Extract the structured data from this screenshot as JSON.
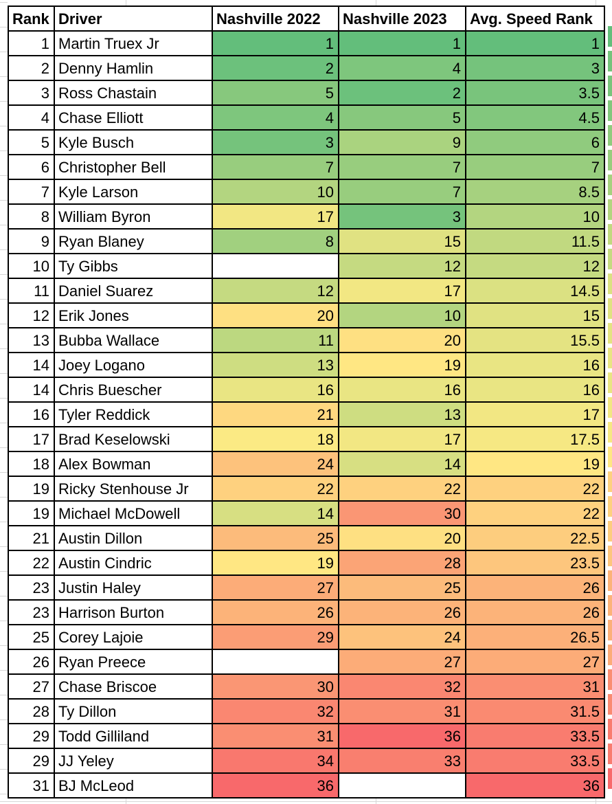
{
  "table": {
    "columns": [
      {
        "key": "rank",
        "label": "Rank"
      },
      {
        "key": "driver",
        "label": "Driver"
      },
      {
        "key": "n2022",
        "label": "Nashville 2022"
      },
      {
        "key": "n2023",
        "label": "Nashville 2023"
      },
      {
        "key": "avg",
        "label": "Avg. Speed Rank"
      }
    ],
    "rows": [
      {
        "rank": "1",
        "driver": "Martin Truex Jr",
        "n2022": "1",
        "n2023": "1",
        "avg": "1"
      },
      {
        "rank": "2",
        "driver": "Denny Hamlin",
        "n2022": "2",
        "n2023": "4",
        "avg": "3"
      },
      {
        "rank": "3",
        "driver": "Ross Chastain",
        "n2022": "5",
        "n2023": "2",
        "avg": "3.5"
      },
      {
        "rank": "4",
        "driver": "Chase Elliott",
        "n2022": "4",
        "n2023": "5",
        "avg": "4.5"
      },
      {
        "rank": "5",
        "driver": "Kyle Busch",
        "n2022": "3",
        "n2023": "9",
        "avg": "6"
      },
      {
        "rank": "6",
        "driver": "Christopher Bell",
        "n2022": "7",
        "n2023": "7",
        "avg": "7"
      },
      {
        "rank": "7",
        "driver": "Kyle Larson",
        "n2022": "10",
        "n2023": "7",
        "avg": "8.5"
      },
      {
        "rank": "8",
        "driver": "William Byron",
        "n2022": "17",
        "n2023": "3",
        "avg": "10"
      },
      {
        "rank": "9",
        "driver": "Ryan Blaney",
        "n2022": "8",
        "n2023": "15",
        "avg": "11.5"
      },
      {
        "rank": "10",
        "driver": "Ty Gibbs",
        "n2022": null,
        "n2023": "12",
        "avg": "12"
      },
      {
        "rank": "11",
        "driver": "Daniel Suarez",
        "n2022": "12",
        "n2023": "17",
        "avg": "14.5"
      },
      {
        "rank": "12",
        "driver": "Erik Jones",
        "n2022": "20",
        "n2023": "10",
        "avg": "15"
      },
      {
        "rank": "13",
        "driver": "Bubba Wallace",
        "n2022": "11",
        "n2023": "20",
        "avg": "15.5"
      },
      {
        "rank": "14",
        "driver": "Joey Logano",
        "n2022": "13",
        "n2023": "19",
        "avg": "16"
      },
      {
        "rank": "14",
        "driver": "Chris Buescher",
        "n2022": "16",
        "n2023": "16",
        "avg": "16"
      },
      {
        "rank": "16",
        "driver": "Tyler Reddick",
        "n2022": "21",
        "n2023": "13",
        "avg": "17"
      },
      {
        "rank": "17",
        "driver": "Brad Keselowski",
        "n2022": "18",
        "n2023": "17",
        "avg": "17.5"
      },
      {
        "rank": "18",
        "driver": "Alex Bowman",
        "n2022": "24",
        "n2023": "14",
        "avg": "19"
      },
      {
        "rank": "19",
        "driver": "Ricky Stenhouse Jr",
        "n2022": "22",
        "n2023": "22",
        "avg": "22"
      },
      {
        "rank": "19",
        "driver": "Michael McDowell",
        "n2022": "14",
        "n2023": "30",
        "avg": "22"
      },
      {
        "rank": "21",
        "driver": "Austin Dillon",
        "n2022": "25",
        "n2023": "20",
        "avg": "22.5"
      },
      {
        "rank": "22",
        "driver": "Austin Cindric",
        "n2022": "19",
        "n2023": "28",
        "avg": "23.5"
      },
      {
        "rank": "23",
        "driver": "Justin Haley",
        "n2022": "27",
        "n2023": "25",
        "avg": "26"
      },
      {
        "rank": "23",
        "driver": "Harrison Burton",
        "n2022": "26",
        "n2023": "26",
        "avg": "26"
      },
      {
        "rank": "25",
        "driver": "Corey Lajoie",
        "n2022": "29",
        "n2023": "24",
        "avg": "26.5"
      },
      {
        "rank": "26",
        "driver": "Ryan Preece",
        "n2022": null,
        "n2023": "27",
        "avg": "27"
      },
      {
        "rank": "27",
        "driver": "Chase Briscoe",
        "n2022": "30",
        "n2023": "32",
        "avg": "31"
      },
      {
        "rank": "28",
        "driver": "Ty Dillon",
        "n2022": "32",
        "n2023": "31",
        "avg": "31.5"
      },
      {
        "rank": "29",
        "driver": "Todd Gilliland",
        "n2022": "31",
        "n2023": "36",
        "avg": "33.5"
      },
      {
        "rank": "29",
        "driver": "JJ Yeley",
        "n2022": "34",
        "n2023": "33",
        "avg": "33.5"
      },
      {
        "rank": "31",
        "driver": "BJ McLeod",
        "n2022": "36",
        "n2023": null,
        "avg": "36"
      }
    ]
  },
  "color_scale": {
    "min_value": 1,
    "mid_value": 18.5,
    "max_value": 36,
    "min_color": "#63BE7B",
    "mid_color": "#FFEB84",
    "max_color": "#F8696B"
  },
  "grid": {
    "gridline_color": "#d6d6d6",
    "cell_border_color": "#000000",
    "blank_cell_color": "#ffffff",
    "text_color": "#000000"
  }
}
